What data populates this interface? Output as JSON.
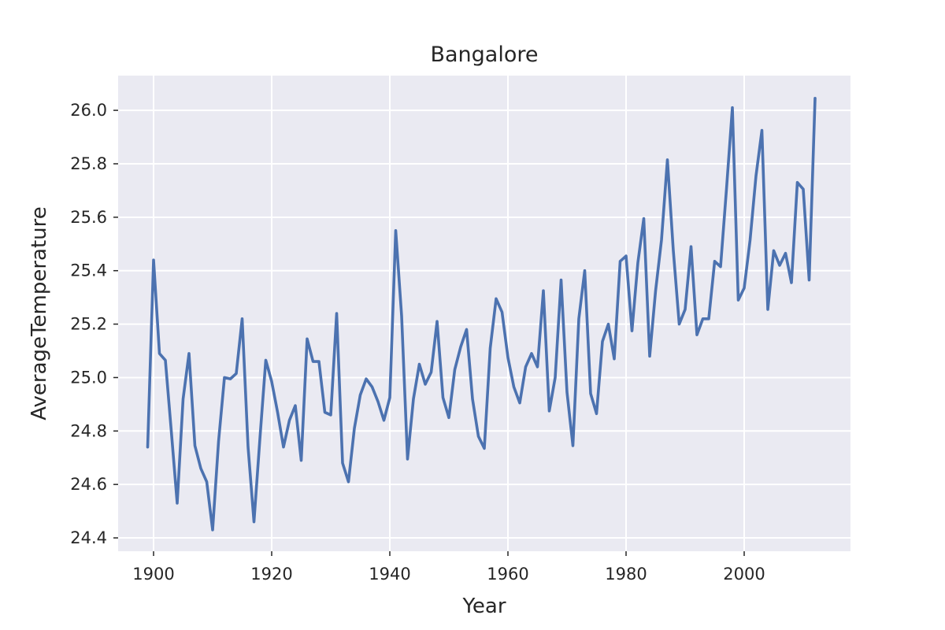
{
  "chart_data": {
    "type": "line",
    "title": "Bangalore",
    "xlabel": "Year",
    "ylabel": "AverageTemperature",
    "xlim": [
      1894,
      2018
    ],
    "ylim": [
      24.35,
      26.13
    ],
    "xticks": [
      1900,
      1920,
      1940,
      1960,
      1980,
      2000
    ],
    "yticks": [
      24.4,
      24.6,
      24.8,
      25.0,
      25.2,
      25.4,
      25.6,
      25.8,
      26.0
    ],
    "grid": true,
    "legend": "none",
    "colors": {
      "line": "#4c72b0",
      "background": "#eaeaf2",
      "grid": "#ffffff"
    },
    "series": [
      {
        "x": [
          1899,
          1900,
          1901,
          1902,
          1903,
          1904,
          1905,
          1906,
          1907,
          1908,
          1909,
          1910,
          1911,
          1912,
          1913,
          1914,
          1915,
          1916,
          1917,
          1918,
          1919,
          1920,
          1921,
          1922,
          1923,
          1924,
          1925,
          1926,
          1927,
          1928,
          1929,
          1930,
          1931,
          1932,
          1933,
          1934,
          1935,
          1936,
          1937,
          1938,
          1939,
          1940,
          1941,
          1942,
          1943,
          1944,
          1945,
          1946,
          1947,
          1948,
          1949,
          1950,
          1951,
          1952,
          1953,
          1954,
          1955,
          1956,
          1957,
          1958,
          1959,
          1960,
          1961,
          1962,
          1963,
          1964,
          1965,
          1966,
          1967,
          1968,
          1969,
          1970,
          1971,
          1972,
          1973,
          1974,
          1975,
          1976,
          1977,
          1978,
          1979,
          1980,
          1981,
          1982,
          1983,
          1984,
          1985,
          1986,
          1987,
          1988,
          1989,
          1990,
          1991,
          1992,
          1993,
          1994,
          1995,
          1996,
          1997,
          1998,
          1999,
          2000,
          2001,
          2002,
          2003,
          2004,
          2005,
          2006,
          2007,
          2008,
          2009,
          2010,
          2011,
          2012
        ],
        "values": [
          24.74,
          25.44,
          25.09,
          25.065,
          24.8,
          24.53,
          24.92,
          25.09,
          24.745,
          24.66,
          24.61,
          24.43,
          24.76,
          25.0,
          24.995,
          25.015,
          25.22,
          24.74,
          24.46,
          24.77,
          25.065,
          24.985,
          24.87,
          24.74,
          24.84,
          24.895,
          24.69,
          25.145,
          25.06,
          25.06,
          24.87,
          24.86,
          25.24,
          24.68,
          24.61,
          24.81,
          24.935,
          24.995,
          24.965,
          24.91,
          24.84,
          24.925,
          25.55,
          25.23,
          24.695,
          24.92,
          25.05,
          24.975,
          25.02,
          25.21,
          24.925,
          24.85,
          25.03,
          25.115,
          25.18,
          24.92,
          24.78,
          24.735,
          25.11,
          25.295,
          25.245,
          25.075,
          24.965,
          24.905,
          25.04,
          25.09,
          25.04,
          25.325,
          24.875,
          25.0,
          25.365,
          24.945,
          24.745,
          25.22,
          25.4,
          24.94,
          24.865,
          25.135,
          25.2,
          25.07,
          25.435,
          25.455,
          25.175,
          25.43,
          25.595,
          25.08,
          25.325,
          25.515,
          25.815,
          25.475,
          25.2,
          25.255,
          25.49,
          25.16,
          25.22,
          25.22,
          25.435,
          25.415,
          25.705,
          26.01,
          25.29,
          25.335,
          25.515,
          25.755,
          25.925,
          25.255,
          25.475,
          25.42,
          25.465,
          25.355,
          25.73,
          25.705,
          25.365,
          26.045
        ]
      }
    ]
  }
}
